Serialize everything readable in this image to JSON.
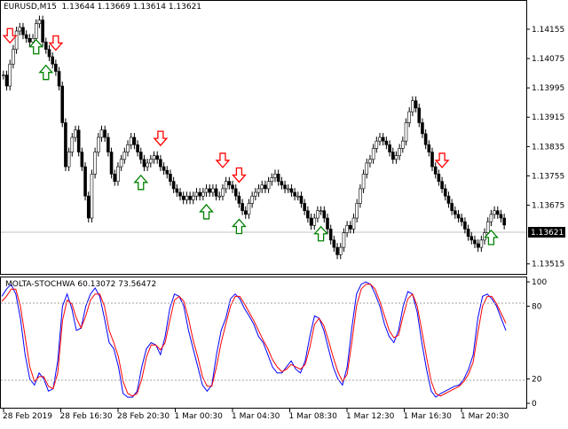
{
  "window": {
    "symbol_info": "EURUSD,M15",
    "ohlc": "1.13644 1.13669 1.13614 1.13621",
    "current_price": "1.13621"
  },
  "indicator": {
    "name": "MOLTA-STOCHWA",
    "value1": "60.13072",
    "value2": "73.56472",
    "level_high": "80",
    "level_low": "20",
    "line_colors": [
      "#0000ff",
      "#ff0000"
    ]
  },
  "colors": {
    "bull": "#000000",
    "bear": "#000000",
    "sell_arrow": "#ff0000",
    "buy_arrow": "#008000"
  },
  "chart_data": [
    {
      "type": "candlestick",
      "title": "EURUSD,M15",
      "y_ticks": [
        "1.14155",
        "1.14075",
        "1.13995",
        "1.13915",
        "1.13835",
        "1.13755",
        "1.13675",
        "1.13515"
      ],
      "x_ticks": [
        "28 Feb 2019",
        "28 Feb 16:30",
        "28 Feb 20:30",
        "1 Mar 00:30",
        "1 Mar 04:30",
        "1 Mar 08:30",
        "1 Mar 12:30",
        "1 Mar 16:30",
        "1 Mar 20:30"
      ],
      "ylim": [
        1.13495,
        1.14225
      ],
      "close_series": [
        1.1403,
        1.14,
        1.1406,
        1.141,
        1.1415,
        1.1416,
        1.1414,
        1.1413,
        1.1412,
        1.1413,
        1.1417,
        1.1418,
        1.1412,
        1.141,
        1.1408,
        1.1406,
        1.1404,
        1.14,
        1.139,
        1.1378,
        1.1382,
        1.1386,
        1.1388,
        1.1382,
        1.1378,
        1.137,
        1.1364,
        1.1376,
        1.1382,
        1.1386,
        1.1388,
        1.1386,
        1.1382,
        1.1376,
        1.1374,
        1.1378,
        1.138,
        1.1382,
        1.1384,
        1.1386,
        1.1384,
        1.1382,
        1.138,
        1.1378,
        1.1379,
        1.138,
        1.1381,
        1.138,
        1.1378,
        1.1377,
        1.1376,
        1.1374,
        1.1372,
        1.1371,
        1.137,
        1.1369,
        1.137,
        1.1369,
        1.137,
        1.1371,
        1.137,
        1.1371,
        1.1372,
        1.1371,
        1.1372,
        1.137,
        1.137,
        1.1372,
        1.1374,
        1.1373,
        1.1372,
        1.137,
        1.1368,
        1.1366,
        1.1365,
        1.1368,
        1.137,
        1.1371,
        1.1372,
        1.1373,
        1.1372,
        1.1374,
        1.1375,
        1.1376,
        1.1374,
        1.1373,
        1.1372,
        1.1372,
        1.1371,
        1.137,
        1.137,
        1.1368,
        1.1366,
        1.1364,
        1.1362,
        1.1364,
        1.1366,
        1.1366,
        1.1364,
        1.1361,
        1.1358,
        1.1356,
        1.1354,
        1.1356,
        1.136,
        1.1362,
        1.1361,
        1.1364,
        1.1368,
        1.1372,
        1.1376,
        1.1379,
        1.138,
        1.1383,
        1.1385,
        1.1386,
        1.1385,
        1.1384,
        1.1382,
        1.138,
        1.1381,
        1.1383,
        1.1385,
        1.139,
        1.1393,
        1.1396,
        1.1394,
        1.139,
        1.1387,
        1.1384,
        1.1382,
        1.1378,
        1.1376,
        1.1374,
        1.1372,
        1.137,
        1.1368,
        1.1366,
        1.1365,
        1.1364,
        1.1363,
        1.1361,
        1.1359,
        1.1358,
        1.1357,
        1.1356,
        1.1358,
        1.136,
        1.1363,
        1.1365,
        1.1366,
        1.1365,
        1.1364,
        1.13621
      ],
      "sell_signal_index": [
        2,
        16,
        48,
        67,
        72,
        134,
        160
      ],
      "buy_signal_index": [
        10,
        13,
        42,
        62,
        72,
        97,
        149
      ]
    },
    {
      "type": "line",
      "title": "MOLTA-STOCHWA",
      "ylim": [
        0,
        100
      ],
      "y_ticks": [
        "100",
        "80",
        "20",
        "0"
      ],
      "series": [
        {
          "values": [
            88,
            94,
            98,
            90,
            70,
            40,
            20,
            15,
            25,
            20,
            10,
            12,
            35,
            80,
            90,
            78,
            60,
            62,
            80,
            90,
            95,
            88,
            70,
            50,
            45,
            30,
            8,
            5,
            5,
            10,
            30,
            45,
            50,
            48,
            40,
            55,
            78,
            90,
            88,
            80,
            60,
            45,
            30,
            15,
            10,
            15,
            40,
            60,
            70,
            86,
            90,
            86,
            78,
            72,
            65,
            55,
            50,
            40,
            30,
            25,
            25,
            30,
            35,
            28,
            25,
            35,
            55,
            72,
            70,
            60,
            45,
            30,
            20,
            15,
            30,
            62,
            90,
            98,
            100,
            98,
            90,
            80,
            65,
            55,
            50,
            60,
            80,
            92,
            90,
            75,
            50,
            28,
            10,
            5,
            8,
            10,
            12,
            14,
            15,
            20,
            28,
            40,
            70,
            88,
            90,
            86,
            80,
            70,
            60
          ]
        },
        {
          "values": [
            84,
            88,
            94,
            94,
            80,
            55,
            30,
            18,
            22,
            22,
            14,
            12,
            25,
            68,
            85,
            82,
            70,
            62,
            72,
            85,
            90,
            90,
            80,
            60,
            50,
            38,
            18,
            8,
            6,
            8,
            20,
            38,
            48,
            48,
            44,
            50,
            68,
            85,
            88,
            84,
            70,
            52,
            38,
            22,
            14,
            14,
            30,
            50,
            65,
            80,
            88,
            88,
            82,
            75,
            68,
            60,
            52,
            45,
            36,
            30,
            26,
            28,
            32,
            30,
            28,
            32,
            46,
            65,
            70,
            64,
            52,
            38,
            26,
            18,
            24,
            50,
            80,
            94,
            98,
            98,
            94,
            84,
            72,
            60,
            54,
            56,
            72,
            86,
            90,
            80,
            60,
            38,
            18,
            8,
            6,
            8,
            10,
            12,
            14,
            18,
            24,
            34,
            58,
            80,
            88,
            88,
            82,
            74,
            66
          ]
        }
      ]
    }
  ]
}
